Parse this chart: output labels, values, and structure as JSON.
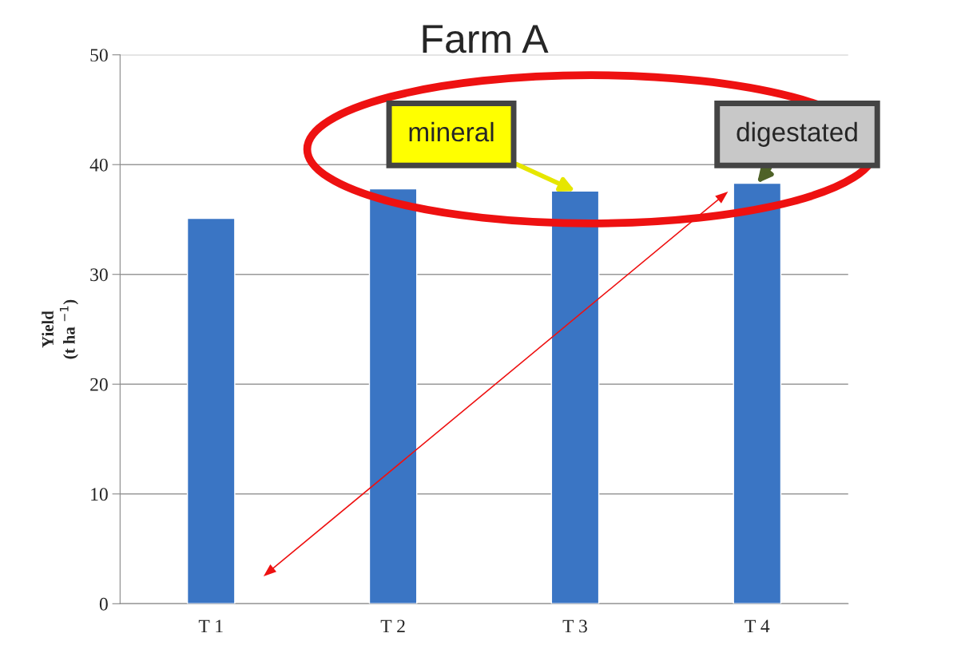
{
  "chart_data": {
    "type": "bar",
    "title": "Farm A",
    "ylabel": "Yield\n(t ha $^{−1}$)",
    "categories": [
      "T 1",
      "T 2",
      "T 3",
      "T 4"
    ],
    "values": [
      35.1,
      37.8,
      37.6,
      38.3
    ],
    "color": "#3a75c4",
    "ylim": [
      0,
      50
    ],
    "yticks": [
      0,
      10,
      20,
      30,
      40,
      50
    ],
    "grid": "y",
    "annotations": [
      {
        "text": "mineral",
        "x": "T 3",
        "y": 37.6
      },
      {
        "text": "digestated",
        "x": "T 4",
        "y": 38.3
      }
    ]
  }
}
